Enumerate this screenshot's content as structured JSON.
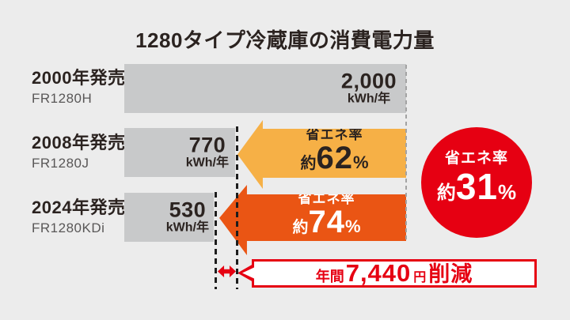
{
  "title": "1280タイプ冷蔵庫の消費電力量",
  "rows": [
    {
      "year_label": "2000年発売",
      "model": "FR1280H",
      "value": "2,000",
      "unit": "kWh/年"
    },
    {
      "year_label": "2008年発売",
      "model": "FR1280J",
      "value": "770",
      "unit": "kWh/年",
      "arrow": {
        "label": "省エネ率",
        "prefix": "約",
        "percent": "62",
        "suffix": "%"
      }
    },
    {
      "year_label": "2024年発売",
      "model": "FR1280KDi",
      "value": "530",
      "unit": "kWh/年",
      "arrow": {
        "label": "省エネ率",
        "prefix": "約",
        "percent": "74",
        "suffix": "%"
      }
    }
  ],
  "badge": {
    "label": "省エネ率",
    "prefix": "約",
    "percent": "31",
    "suffix": "%"
  },
  "callout": {
    "prefix": "年間",
    "amount": "7,440",
    "unit": "円",
    "suffix": "削減"
  },
  "colors": {
    "background": "#ECECEC",
    "bar_gray": "#C8C9CA",
    "arrow_2008_yellow": "#F6B046",
    "arrow_2024_orange": "#EA5514",
    "accent_red": "#E60012",
    "text_dark": "#2B2320",
    "text_gray": "#595757"
  },
  "chart_data": {
    "type": "bar",
    "orientation": "horizontal",
    "title": "1280タイプ冷蔵庫の消費電力量",
    "categories": [
      "2000年発売 FR1280H",
      "2008年発売 FR1280J",
      "2024年発売 FR1280KDi"
    ],
    "values": [
      2000,
      770,
      530
    ],
    "unit": "kWh/年",
    "value_labels": [
      "2,000 kWh/年",
      "770 kWh/年",
      "530 kWh/年"
    ],
    "xlim": [
      0,
      2000
    ],
    "grid": false,
    "legend": false,
    "annotations": [
      {
        "text": "省エネ率 約62%",
        "applies_to": "2008年発売 FR1280J (2000年モデル比)"
      },
      {
        "text": "省エネ率 約74%",
        "applies_to": "2024年発売 FR1280KDi (2000年モデル比)"
      },
      {
        "text": "省エネ率 約31%",
        "applies_to": "2024年モデル vs 2008年モデル"
      },
      {
        "text": "年間7,440円削減",
        "applies_to": "2024年モデル vs 2008年モデルの差分"
      }
    ]
  }
}
